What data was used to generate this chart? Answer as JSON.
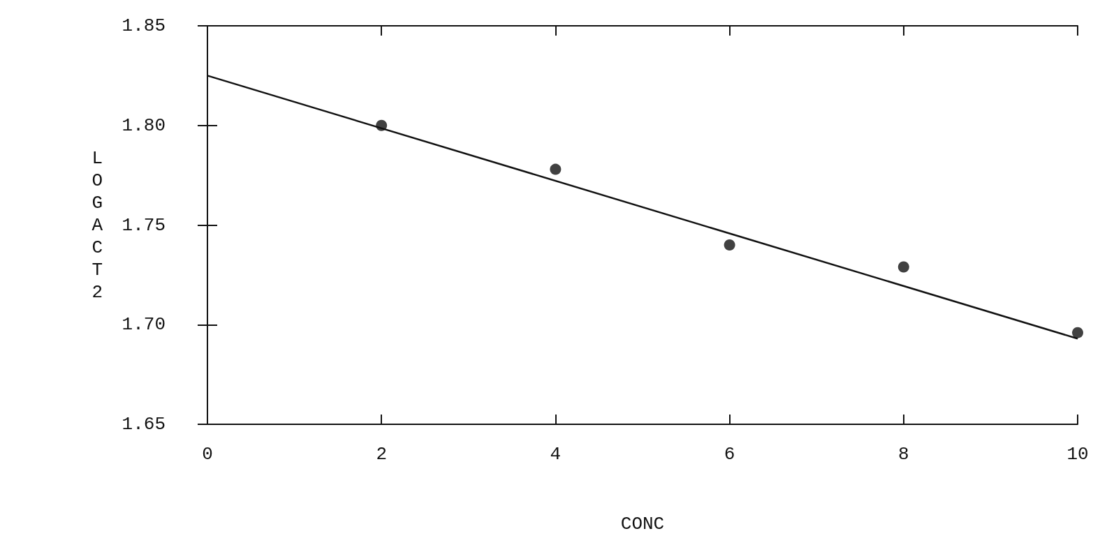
{
  "chart_data": {
    "type": "scatter",
    "xlabel": "CONC",
    "ylabel": "LOGACT2",
    "xlim": [
      0,
      10
    ],
    "xticks": [
      0,
      2,
      4,
      6,
      8,
      10
    ],
    "ylim": [
      1.65,
      1.85
    ],
    "yticks": [
      1.65,
      {
        "value": 1.7,
        "label": "1.70"
      },
      1.75,
      {
        "value": 1.8,
        "label": "1.80"
      },
      1.85
    ],
    "grid": false,
    "series": [
      {
        "color": "#111111",
        "marker": "circle",
        "x": [
          2,
          4,
          6,
          8,
          10
        ],
        "values": [
          1.8,
          1.778,
          1.74,
          1.729,
          1.696
        ]
      },
      {
        "type": "line",
        "color": "#111111",
        "marker": "none",
        "line_style": "solid",
        "x": [
          0,
          10
        ],
        "values": [
          1.825,
          1.693
        ]
      }
    ]
  }
}
